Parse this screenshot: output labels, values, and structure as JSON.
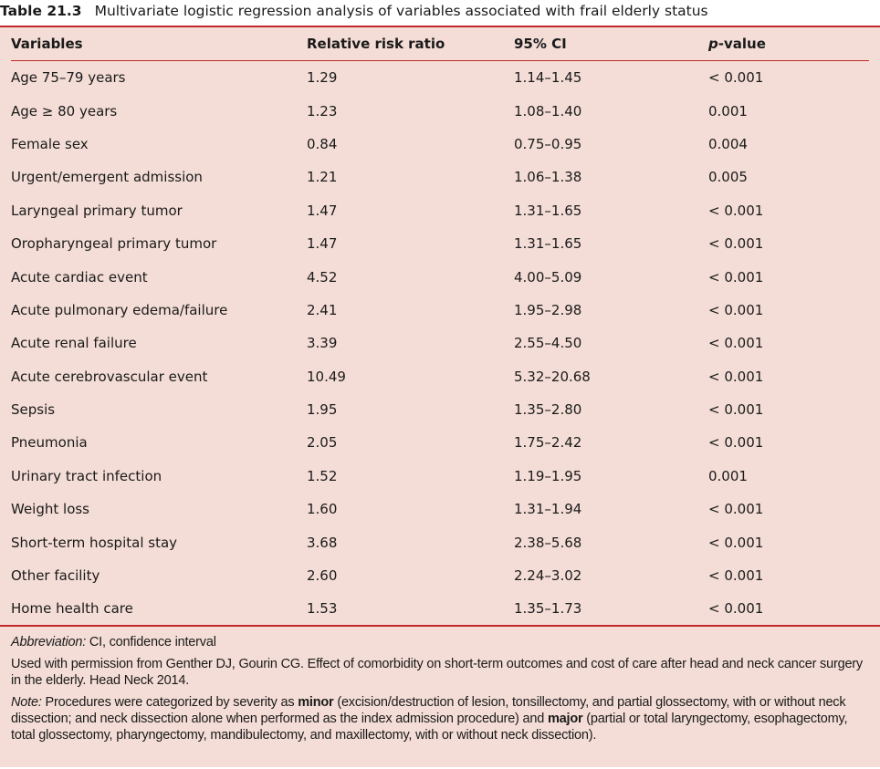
{
  "caption": {
    "number": "Table 21.3",
    "title": "Multivariate logistic regression analysis of variables associated with frail elderly status"
  },
  "table": {
    "headers": [
      "Variables",
      "Relative risk ratio",
      "95% CI",
      "p",
      "-value"
    ],
    "rows": [
      [
        "Age 75–79 years",
        "1.29",
        "1.14–1.45",
        "< 0.001"
      ],
      [
        "Age ≥ 80 years",
        "1.23",
        "1.08–1.40",
        "0.001"
      ],
      [
        "Female sex",
        "0.84",
        "0.75–0.95",
        "0.004"
      ],
      [
        "Urgent/emergent admission",
        "1.21",
        "1.06–1.38",
        "0.005"
      ],
      [
        "Laryngeal primary tumor",
        "1.47",
        "1.31–1.65",
        "< 0.001"
      ],
      [
        "Oropharyngeal primary tumor",
        "1.47",
        "1.31–1.65",
        "< 0.001"
      ],
      [
        "Acute cardiac event",
        "4.52",
        "4.00–5.09",
        "< 0.001"
      ],
      [
        "Acute pulmonary edema/failure",
        "2.41",
        "1.95–2.98",
        "< 0.001"
      ],
      [
        "Acute renal failure",
        "3.39",
        "2.55–4.50",
        "< 0.001"
      ],
      [
        "Acute cerebrovascular event",
        "10.49",
        "5.32–20.68",
        "< 0.001"
      ],
      [
        "Sepsis",
        "1.95",
        "1.35–2.80",
        "< 0.001"
      ],
      [
        "Pneumonia",
        "2.05",
        "1.75–2.42",
        "< 0.001"
      ],
      [
        "Urinary tract infection",
        "1.52",
        "1.19–1.95",
        "0.001"
      ],
      [
        "Weight loss",
        "1.60",
        "1.31–1.94",
        "< 0.001"
      ],
      [
        "Short-term hospital stay",
        "3.68",
        "2.38–5.68",
        "< 0.001"
      ],
      [
        "Other facility",
        "2.60",
        "2.24–3.02",
        "< 0.001"
      ],
      [
        "Home health care",
        "1.53",
        "1.35–1.73",
        "< 0.001"
      ]
    ]
  },
  "footnotes": {
    "abbrev_label": "Abbreviation:",
    "abbrev_text": " CI, confidence interval",
    "source": "Used with permission from Genther DJ, Gourin CG. Effect of comorbidity on short-term outcomes and cost of care after head and neck cancer surgery in the elderly. Head Neck 2014.",
    "note_label": "Note:",
    "note_1": " Procedures were categorized by severity as ",
    "note_minor": "minor",
    "note_2": " (excision/destruction of lesion, tonsillectomy, and partial glossectomy, with or without neck dissection; and neck dissection alone when performed as the index admission procedure) and ",
    "note_major": "major",
    "note_3": " (partial or total laryngectomy, esophagectomy, total glossectomy, pharyngectomy, mandibulectomy, and maxillectomy, with or without neck dissection)."
  }
}
